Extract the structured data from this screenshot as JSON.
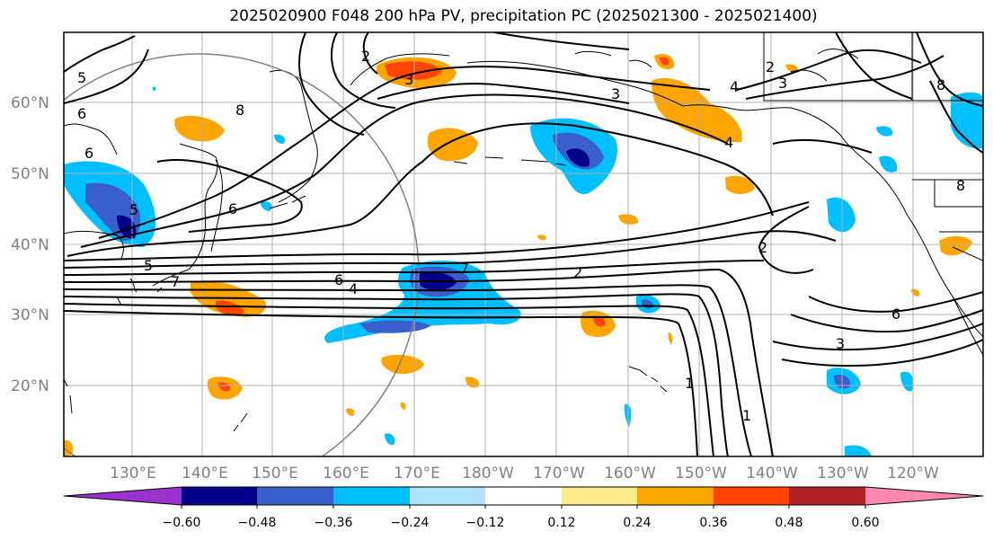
{
  "title": "2025020900 F048 200 hPa PV, precipitation PC (2025021300 - 2025021400)",
  "lat_labels": [
    "60°N",
    "50°N",
    "40°N",
    "30°N",
    "20°N"
  ],
  "lon_labels": [
    "130°E",
    "140°E",
    "150°E",
    "160°E",
    "170°E",
    "180°W",
    "170°W",
    "160°W",
    "150°W",
    "140°W",
    "130°W",
    "120°W"
  ],
  "colorbar": {
    "colors": [
      "#9932cc",
      "#00008b",
      "#3a5fcd",
      "#00bfff",
      "#b0e2ff",
      "#ffffff",
      "#ffeb8a",
      "#ffa500",
      "#ff4500",
      "#b22222",
      "#ff88b0"
    ],
    "tick_labels": [
      "−0.60",
      "−0.48",
      "−0.36",
      "−0.24",
      "−0.12",
      "0.12",
      "0.24",
      "0.36",
      "0.48",
      "0.60"
    ]
  },
  "contour_labels": [
    "2",
    "3",
    "5",
    "6",
    "6",
    "8",
    "5",
    "7",
    "6",
    "4",
    "5",
    "7",
    "2",
    "2",
    "3",
    "4",
    "4",
    "2",
    "3",
    "8",
    "8",
    "6",
    "3",
    "1",
    "1",
    "6"
  ]
}
